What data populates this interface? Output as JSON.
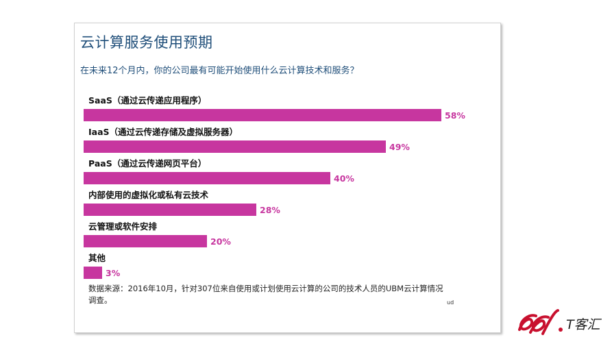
{
  "header": {
    "title": "云计算服务使用预期",
    "subtitle": "在未来12个月内，你的公司最有可能开始使用什么云计算技术和服务？"
  },
  "chart_data": {
    "type": "bar",
    "orientation": "horizontal",
    "categories": [
      "SaaS（通过云传递应用程序）",
      "IaaS（通过云传递存储及虚拟服务器）",
      "PaaS（通过云传递网页平台）",
      "内部使用的虚拟化或私有云技术",
      "云管理或软件安排",
      "其他"
    ],
    "values": [
      58,
      49,
      40,
      28,
      20,
      3
    ],
    "value_labels": [
      "58%",
      "49%",
      "40%",
      "28%",
      "20%",
      "3%"
    ],
    "unit": "%",
    "xlim": [
      0,
      58
    ],
    "grid": false,
    "legend": "none",
    "bar_color": "#c7369f"
  },
  "footnote": "数据来源：2016年10月，针对307位来自使用或计划使用云计算的公司的技术人员的UBM云计算情况调查。",
  "source_mark": "ud",
  "watermark": {
    "text": "T客汇",
    "color": "#c8102e"
  }
}
